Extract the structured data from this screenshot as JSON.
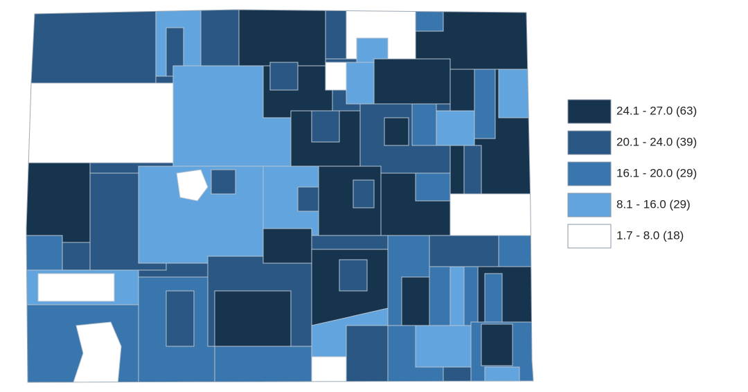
{
  "legend": {
    "items": [
      {
        "label": "24.1 - 27.0 (63)",
        "color": "#17344f"
      },
      {
        "label": "20.1 - 24.0 (39)",
        "color": "#2a5783"
      },
      {
        "label": "16.1 - 20.0 (29)",
        "color": "#3a76ae"
      },
      {
        "label": "8.1 - 16.0 (29)",
        "color": "#62a5de"
      },
      {
        "label": "1.7 - 8.0 (18)",
        "color": "#ffffff"
      }
    ]
  }
}
